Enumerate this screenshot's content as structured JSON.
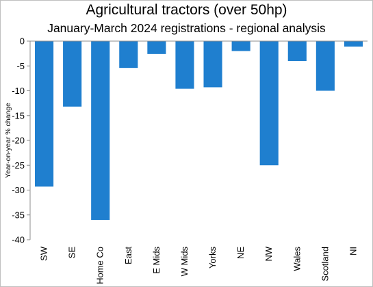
{
  "chart_data": {
    "type": "bar",
    "title": "Agricultural tractors (over 50hp)",
    "subtitle": "January-March 2024 registrations - regional analysis",
    "xlabel": "",
    "ylabel": "Year-on-year  % change",
    "ylim": [
      -40,
      0
    ],
    "yticks": [
      0,
      -5,
      -10,
      -15,
      -20,
      -25,
      -30,
      -35,
      -40
    ],
    "grid": false,
    "bar_color": "#1f7fcf",
    "categories": [
      "SW",
      "SE",
      "Home Co",
      "East",
      "E Mids",
      "W Mids",
      "Yorks",
      "NE",
      "NW",
      "Wales",
      "Scotland",
      "NI"
    ],
    "values": [
      -29.3,
      -13.2,
      -36.0,
      -5.4,
      -2.6,
      -9.6,
      -9.3,
      -2.0,
      -25.0,
      -4.0,
      -10.0,
      -1.1
    ]
  }
}
